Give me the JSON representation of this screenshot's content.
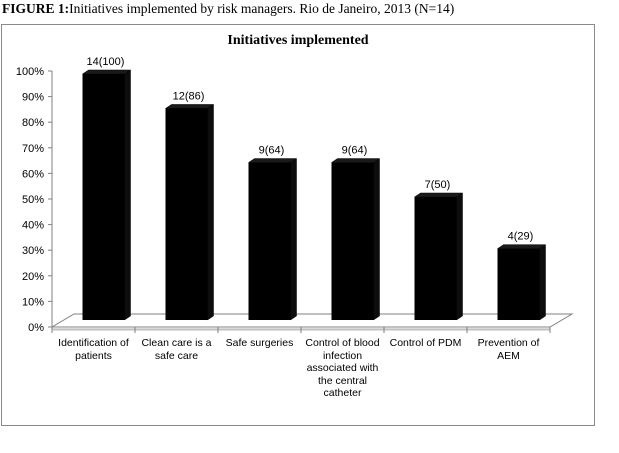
{
  "caption": {
    "label": "FIGURE 1:",
    "text": "Initiatives implemented by risk managers. Rio de Janeiro, 2013 (N=14)"
  },
  "chart_data": {
    "type": "bar",
    "style": "3d",
    "title": "Initiatives implemented",
    "xlabel": "",
    "ylabel": "",
    "ylim": [
      0,
      100
    ],
    "yticks": [
      "0%",
      "10%",
      "20%",
      "30%",
      "40%",
      "50%",
      "60%",
      "70%",
      "80%",
      "90%",
      "100%"
    ],
    "grid": false,
    "legend": "none",
    "categories": [
      "Identification of patients",
      "Clean care is a safe care",
      "Safe surgeries",
      "Control of blood infection associated with the central catheter",
      "Control of PDM",
      "Prevention of AEM"
    ],
    "values": [
      100,
      86,
      64,
      64,
      50,
      29
    ],
    "data_labels": [
      "14(100)",
      "12(86)",
      "9(64)",
      "9(64)",
      "7(50)",
      "4(29)"
    ],
    "colors": {
      "bar": "#000000",
      "floor": "#ffffff",
      "axis": "#808080"
    }
  }
}
